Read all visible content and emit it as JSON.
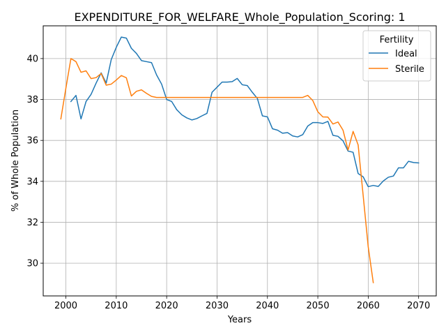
{
  "chart_data": {
    "type": "line",
    "title": "EXPENDITURE_FOR_WELFARE_Whole_Population_Scoring: 1",
    "xlabel": "Years",
    "ylabel": "% of Whole Population",
    "xlim": [
      1995.5,
      2073.5
    ],
    "ylim": [
      28.4,
      41.6
    ],
    "xticks": [
      2000,
      2010,
      2020,
      2030,
      2040,
      2050,
      2060,
      2070
    ],
    "yticks": [
      30,
      32,
      34,
      36,
      38,
      40
    ],
    "grid": true,
    "legend": {
      "title": "Fertility",
      "position": "top-right"
    },
    "series": [
      {
        "name": "Ideal",
        "color": "#1f77b4",
        "x": [
          2001,
          2002,
          2003,
          2004,
          2005,
          2006,
          2007,
          2008,
          2009,
          2010,
          2011,
          2012,
          2013,
          2014,
          2015,
          2016,
          2017,
          2018,
          2019,
          2020,
          2021,
          2022,
          2023,
          2024,
          2025,
          2026,
          2027,
          2028,
          2029,
          2030,
          2031,
          2032,
          2033,
          2034,
          2035,
          2036,
          2037,
          2038,
          2039,
          2040,
          2041,
          2042,
          2043,
          2044,
          2045,
          2046,
          2047,
          2048,
          2049,
          2050,
          2051,
          2052,
          2053,
          2054,
          2055,
          2056,
          2057,
          2058,
          2059,
          2060,
          2061,
          2062,
          2063,
          2064,
          2065,
          2066,
          2067,
          2068,
          2069,
          2070
        ],
        "y": [
          37.9,
          38.2,
          37.05,
          37.9,
          38.25,
          38.8,
          39.3,
          38.8,
          39.95,
          40.55,
          41.05,
          41.0,
          40.5,
          40.25,
          39.9,
          39.85,
          39.8,
          39.2,
          38.75,
          38.0,
          37.9,
          37.5,
          37.25,
          37.1,
          37.0,
          37.07,
          37.2,
          37.32,
          38.35,
          38.6,
          38.85,
          38.85,
          38.87,
          39.03,
          38.72,
          38.68,
          38.35,
          38.05,
          37.2,
          37.15,
          36.57,
          36.5,
          36.35,
          36.38,
          36.22,
          36.17,
          36.28,
          36.7,
          36.87,
          36.87,
          36.83,
          36.93,
          36.25,
          36.2,
          35.98,
          35.48,
          35.42,
          34.38,
          34.22,
          33.74,
          33.8,
          33.75,
          34.02,
          34.2,
          34.26,
          34.66,
          34.66,
          34.98,
          34.92,
          34.9
        ]
      },
      {
        "name": "Sterile",
        "color": "#ff7f0e",
        "x": [
          1999,
          2000,
          2001,
          2002,
          2003,
          2004,
          2005,
          2006,
          2007,
          2008,
          2009,
          2010,
          2011,
          2012,
          2013,
          2014,
          2015,
          2016,
          2017,
          2018,
          2019,
          2020,
          2025,
          2030,
          2035,
          2040,
          2045,
          2047,
          2048,
          2049,
          2050,
          2051,
          2052,
          2053,
          2054,
          2055,
          2056,
          2057,
          2058,
          2059,
          2060,
          2061
        ],
        "y": [
          37.05,
          38.55,
          40.0,
          39.85,
          39.33,
          39.4,
          39.02,
          39.07,
          39.27,
          38.7,
          38.75,
          38.95,
          39.17,
          39.06,
          38.17,
          38.4,
          38.47,
          38.3,
          38.15,
          38.1,
          38.1,
          38.1,
          38.1,
          38.1,
          38.1,
          38.1,
          38.1,
          38.1,
          38.2,
          37.95,
          37.4,
          37.15,
          37.14,
          36.8,
          36.9,
          36.5,
          35.53,
          36.44,
          35.78,
          33.3,
          30.8,
          29.05
        ]
      }
    ]
  }
}
